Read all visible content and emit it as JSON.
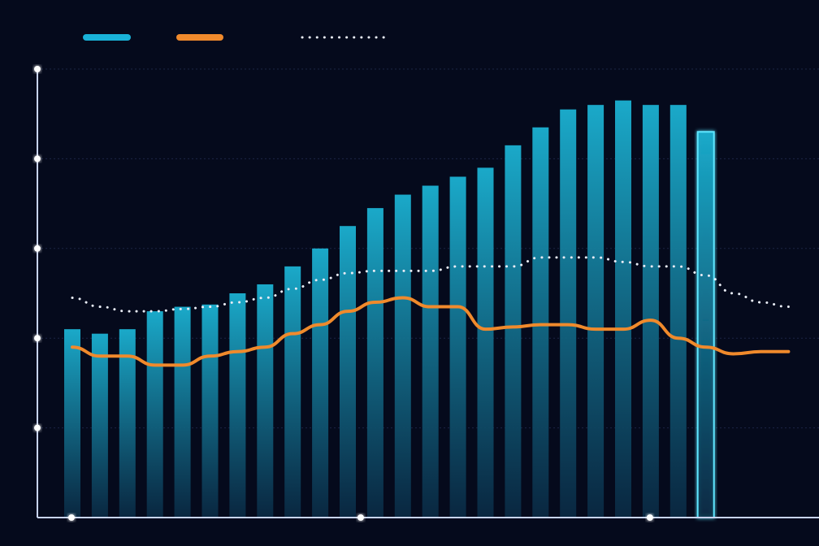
{
  "colors": {
    "background": "#050a1c",
    "bar_top": "#1aa9c9",
    "bar_bottom": "#0a2a44",
    "bar_highlight_outline": "#5ee6ff",
    "line": "#f08a2c",
    "dotted": "#e8ecf5",
    "axis": "#c9d4f5",
    "grid": "#1c2545",
    "legend_bar": "#19b2d8"
  },
  "chart_data": {
    "type": "bar",
    "title": "",
    "xlabel": "",
    "ylabel": "",
    "ylim": [
      0,
      100
    ],
    "legend": {
      "position": "top-left",
      "entries": [
        {
          "marker": "bar-swatch"
        },
        {
          "marker": "line-swatch"
        },
        {
          "marker": "dotted-swatch"
        }
      ]
    },
    "grid": true,
    "x_count": 27,
    "bars": [
      42,
      41,
      42,
      46,
      47,
      47.5,
      50,
      52,
      56,
      60,
      65,
      69,
      72,
      74,
      76,
      78,
      83,
      87,
      91,
      92,
      93,
      92,
      92,
      86
    ],
    "highlighted_bar_index": 23,
    "series": [
      {
        "type": "line",
        "values": [
          38,
          36,
          36,
          34,
          34,
          36,
          37,
          38,
          41,
          43,
          46,
          48,
          49,
          47,
          47,
          42,
          42.5,
          43,
          43,
          42,
          42,
          44,
          40,
          38,
          36.5,
          37,
          37
        ]
      },
      {
        "type": "dotted-line",
        "values": [
          49,
          47,
          46,
          46,
          46.5,
          47,
          48,
          49,
          51,
          53,
          54.5,
          55,
          55,
          55,
          56,
          56,
          56,
          58,
          58,
          58,
          57,
          56,
          56,
          54,
          50,
          48,
          47
        ]
      }
    ],
    "x_ticks": [
      0,
      10.5,
      21
    ],
    "y_ticks": [
      20,
      40,
      60,
      80,
      100
    ]
  }
}
